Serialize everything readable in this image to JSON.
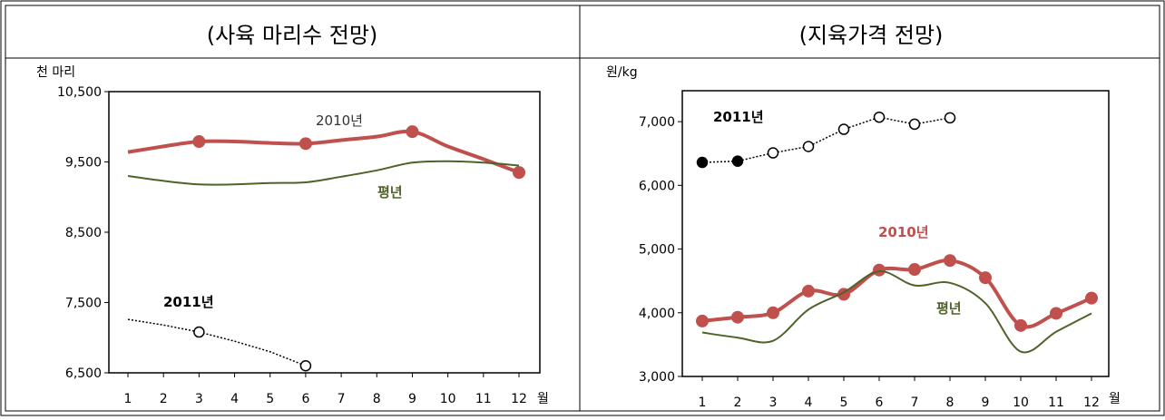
{
  "panels": [
    {
      "title": "(사육 마리수 전망)"
    },
    {
      "title": "(지육가격 전망)"
    }
  ],
  "chart_data": [
    {
      "type": "line",
      "title": "(사육 마리수 전망)",
      "ylabel": "천 마리",
      "xlabel": "월",
      "ylim": [
        6500,
        10500
      ],
      "yticks": [
        6500,
        7500,
        8500,
        9500,
        10500
      ],
      "ytick_labels": [
        "6,500",
        "7,500",
        "8,500",
        "9,500",
        "10,500"
      ],
      "categories": [
        "1",
        "2",
        "3",
        "4",
        "5",
        "6",
        "7",
        "8",
        "9",
        "10",
        "11",
        "12"
      ],
      "series": [
        {
          "name": "2010년",
          "color": "#c0504d",
          "values": [
            9640,
            9720,
            9790,
            9790,
            9770,
            9760,
            9810,
            9860,
            9930,
            9720,
            9540,
            9350
          ],
          "markers": [
            3,
            6,
            9,
            12
          ],
          "marker": "filled"
        },
        {
          "name": "평년",
          "color": "#4f6228",
          "values": [
            9300,
            9230,
            9180,
            9180,
            9200,
            9210,
            9290,
            9380,
            9490,
            9510,
            9490,
            9450
          ]
        },
        {
          "name": "2011년",
          "color": "#000000",
          "values": [
            7260,
            7180,
            7080,
            6950,
            6800,
            6600,
            null,
            null,
            null,
            null,
            null,
            null
          ],
          "markers": [
            3,
            6
          ],
          "marker": "open"
        }
      ]
    },
    {
      "type": "line",
      "title": "(지육가격 전망)",
      "ylabel": "원/kg",
      "xlabel": "월",
      "ylim": [
        3000,
        7500
      ],
      "yticks": [
        3000,
        4000,
        5000,
        6000,
        7000
      ],
      "ytick_labels": [
        "3,000",
        "4,000",
        "5,000",
        "6,000",
        "7,000"
      ],
      "categories": [
        "1",
        "2",
        "3",
        "4",
        "5",
        "6",
        "7",
        "8",
        "9",
        "10",
        "11",
        "12"
      ],
      "series": [
        {
          "name": "2010년",
          "color": "#c0504d",
          "values": [
            3870,
            3930,
            4000,
            4340,
            4290,
            4670,
            4680,
            4820,
            4550,
            3800,
            3990,
            4230
          ],
          "markers": [
            1,
            2,
            3,
            4,
            5,
            6,
            7,
            8,
            9,
            10,
            11,
            12
          ],
          "marker": "filled"
        },
        {
          "name": "평년",
          "color": "#4f6228",
          "values": [
            3690,
            3610,
            3560,
            4050,
            4320,
            4650,
            4430,
            4470,
            4150,
            3390,
            3700,
            3990
          ]
        },
        {
          "name": "2011년",
          "color": "#000000",
          "values": [
            6360,
            6380,
            6510,
            6610,
            6880,
            7070,
            6960,
            7060,
            null,
            null,
            null,
            null
          ],
          "markers": [
            1,
            2,
            3,
            4,
            5,
            6,
            7,
            8
          ],
          "marker": "mixed",
          "filled_markers": [
            1,
            2
          ]
        }
      ]
    }
  ]
}
